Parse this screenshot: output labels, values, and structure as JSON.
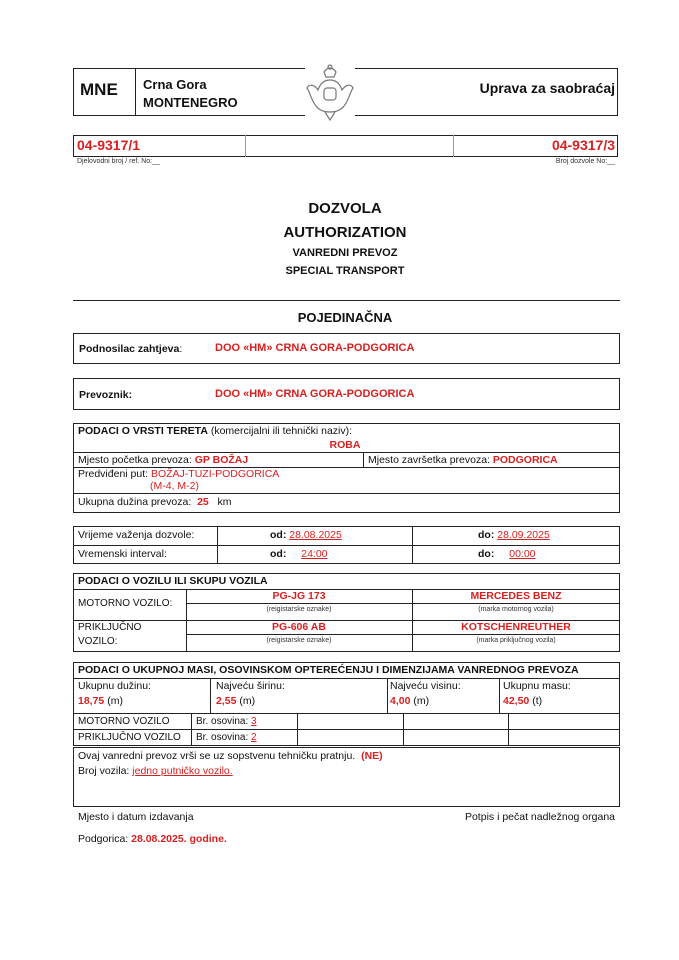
{
  "header": {
    "country_code": "MNE",
    "country_line1": "Crna Gora",
    "country_line2": "MONTENEGRO",
    "authority": "Uprava za saobraćaj",
    "crest_icon": "montenegro-coat-of-arms"
  },
  "refs": {
    "ref_no": "04-9317/1",
    "ref_caption": "Djelovodni broj / ref. No:__",
    "permit_no": "04-9317/3",
    "permit_caption": "Broj dozvole No:__"
  },
  "titles": {
    "t1": "DOZVOLA",
    "t2": "AUTHORIZATION",
    "t3": "VANREDNI PREVOZ",
    "t4": "SPECIAL TRANSPORT",
    "type": "POJEDINAČNA"
  },
  "applicant": {
    "label": "Podnosilac zahtjeva",
    "colon": ":",
    "value": "DOO «HM» CRNA GORA-PODGORICA"
  },
  "carrier": {
    "label": "Prevoznik:",
    "value": "DOO «HM» CRNA GORA-PODGORICA"
  },
  "cargo": {
    "heading": "PODACI O VRSTI TERETA",
    "heading_note": "(komercijalni ili tehnički naziv):",
    "goods": "ROBA",
    "start_label": "Mjesto početka prevoza:",
    "start": "GP BOŽAJ",
    "end_label": "Mjesto završetka prevoza:",
    "end": "PODGORICA",
    "route_label": "Predviđeni put:",
    "route": "BOŽAJ-TUZI-PODGORICA",
    "route2": "(M-4, M-2)",
    "length_label": "Ukupna dužina prevoza:",
    "length": "25",
    "length_unit": "km"
  },
  "validity": {
    "row1_label": "Vrijeme važenja dozvole:",
    "from_label": "od:",
    "from": "28.08.2025",
    "to_label": "do:",
    "to": "28.09.2025",
    "row2_label": "Vremenski interval:",
    "from_time": "24:00",
    "to_time": "00:00"
  },
  "vehicle": {
    "heading": "PODACI O VOZILU ILI SKUPU  VOZILA",
    "motor_label": "MOTORNO VOZILO:",
    "motor_plate": "PG-JG 173",
    "plate_caption": "(reigistarske oznake)",
    "motor_make": "MERCEDES BENZ",
    "motor_make_caption": "(marka motornog vozila)",
    "trailer_label1": "PRIKLJUČNO",
    "trailer_label2": "VOZILO:",
    "trailer_plate": "PG-606 AB",
    "trailer_make": "KOTSCHENREUTHER",
    "trailer_make_caption": "(marka priključnog vozila)"
  },
  "mass": {
    "heading": "PODACI O UKUPNOJ MASI, OSOVINSKOM  OPTEREĆENJU I  DIMENZIJAMA VANREDNOG PREVOZA",
    "length_label": "Ukupnu dužinu:",
    "length": "18,75",
    "width_label": "Najveću širinu:",
    "width": "2,55",
    "height_label": "Najveću visinu:",
    "height": "4,00",
    "m_unit": "(m)",
    "mass_label": "Ukupnu masu:",
    "mass": "42,50",
    "t_unit": "(t)",
    "motor_label": "MOTORNO VOZILO",
    "axles_label": "Br. osovina:",
    "motor_axles": "3",
    "trailer_label": "PRIKLJUČNO VOZILO",
    "trailer_axles": "2"
  },
  "escort": {
    "line1": "Ovaj vanredni prevoz vrši se uz sopstvenu tehničku pratnju.",
    "answer": "(NE)",
    "count_label": "Broj vozila:",
    "count": "jedno putničko vozilo."
  },
  "footer": {
    "place_date_label": "Mjesto i datum izdavanja",
    "signature_label": "Potpis i pečat nadležnog organa",
    "place": "Podgorica:",
    "date": "28.08.2025. godine."
  }
}
